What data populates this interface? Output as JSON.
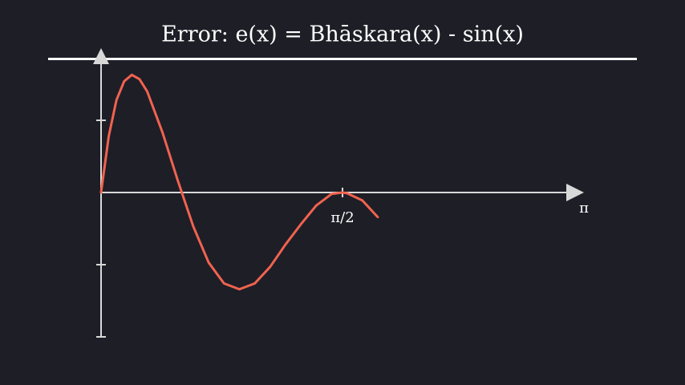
{
  "chart_data": {
    "type": "line",
    "title": "Error: e(x) = Bhāskara(x) - sin(x)",
    "x_label": "π",
    "x": [
      0,
      0.05,
      0.1,
      0.15,
      0.2,
      0.25,
      0.3,
      0.4,
      0.5,
      0.6,
      0.7,
      0.8,
      0.9,
      1.0,
      1.1,
      1.2,
      1.3,
      1.4,
      1.5,
      1.5708,
      1.6,
      1.7,
      1.8
    ],
    "series": [
      {
        "color": "#f0634f",
        "values": [
          0,
          0.00078,
          0.00128,
          0.00154,
          0.00163,
          0.00157,
          0.0014,
          0.00083,
          0.00016,
          -0.00047,
          -0.00097,
          -0.00126,
          -0.00134,
          -0.00126,
          -0.00103,
          -0.00072,
          -0.00044,
          -0.00018,
          -2e-05,
          0,
          -1e-05,
          -0.00011,
          -0.00034
        ]
      }
    ],
    "xlim": [
      0,
      3.1416
    ],
    "xticks": [
      {
        "value": 1.5708,
        "label": "π/2"
      }
    ],
    "ylim": [
      -0.002,
      0.002
    ],
    "yticks": [
      -0.002,
      -0.001,
      0.001
    ]
  }
}
